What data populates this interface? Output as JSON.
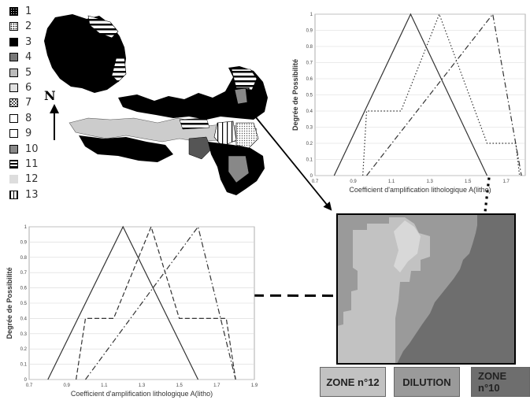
{
  "legend": {
    "items": [
      {
        "label": "1",
        "pattern": "dense-dots"
      },
      {
        "label": "2",
        "pattern": "dots"
      },
      {
        "label": "3",
        "pattern": "black"
      },
      {
        "label": "4",
        "pattern": "dark-gray"
      },
      {
        "label": "5",
        "pattern": "light-gray"
      },
      {
        "label": "6",
        "pattern": "fine-dots"
      },
      {
        "label": "7",
        "pattern": "checker"
      },
      {
        "label": "8",
        "pattern": "white"
      },
      {
        "label": "9",
        "pattern": "white"
      },
      {
        "label": "10",
        "pattern": "gray"
      },
      {
        "label": "11",
        "pattern": "hlines"
      },
      {
        "label": "12",
        "pattern": "very-light"
      },
      {
        "label": "13",
        "pattern": "vlines"
      }
    ]
  },
  "north_label": "N",
  "zones": {
    "zone12": "ZONE n°12",
    "dilution": "DILUTION",
    "zone10": "ZONE n°10",
    "colors": {
      "zone12": "#c2c2c2",
      "dilution": "#9a9a9a",
      "zone10": "#6e6e6e"
    }
  },
  "chart_data": [
    {
      "type": "line",
      "xlabel": "Coefficient d'amplification lithologique A(litho)",
      "ylabel": "Degrée de Possibilité",
      "xlim": [
        0.7,
        1.9
      ],
      "ylim": [
        0,
        1
      ],
      "xticks": [
        "0.7",
        "0.9",
        "1.1",
        "1.3",
        "1.5",
        "1.7",
        "1.9"
      ],
      "yticks": [
        "0",
        "0.1",
        "0.2",
        "0.3",
        "0.4",
        "0.5",
        "0.6",
        "0.7",
        "0.8",
        "0.9",
        "1"
      ],
      "series": [
        {
          "style": "solid",
          "x": [
            0.8,
            1.2,
            1.6
          ],
          "y": [
            0,
            1,
            0
          ]
        },
        {
          "style": "dashed",
          "x": [
            0.95,
            1.0,
            1.15,
            1.35,
            1.5,
            1.75,
            1.8
          ],
          "y": [
            0,
            0.4,
            0.4,
            1,
            0.4,
            0.4,
            0
          ]
        },
        {
          "style": "dashdot",
          "x": [
            1.0,
            1.6,
            1.8
          ],
          "y": [
            0,
            1,
            0
          ]
        }
      ]
    },
    {
      "type": "line",
      "xlabel": "Coefficient d'amplification lithologique A(litho)",
      "ylabel": "Degrée de Possibilité",
      "xlim": [
        0.7,
        1.8
      ],
      "ylim": [
        0,
        1
      ],
      "xticks": [
        "0.7",
        "0.9",
        "1.1",
        "1.3",
        "1.5",
        "1.7"
      ],
      "yticks": [
        "0",
        "0.1",
        "0.2",
        "0.3",
        "0.4",
        "0.5",
        "0.6",
        "0.7",
        "0.8",
        "0.9",
        "1"
      ],
      "series": [
        {
          "style": "solid",
          "x": [
            0.8,
            1.2,
            1.6
          ],
          "y": [
            0,
            1,
            0
          ]
        },
        {
          "style": "dotted",
          "x": [
            0.95,
            0.97,
            1.15,
            1.35,
            1.6,
            1.75,
            1.77
          ],
          "y": [
            0,
            0.4,
            0.4,
            1,
            0.2,
            0.2,
            0
          ]
        },
        {
          "style": "dashdot",
          "x": [
            0.97,
            1.63,
            1.78
          ],
          "y": [
            0,
            1,
            0
          ]
        }
      ]
    }
  ]
}
